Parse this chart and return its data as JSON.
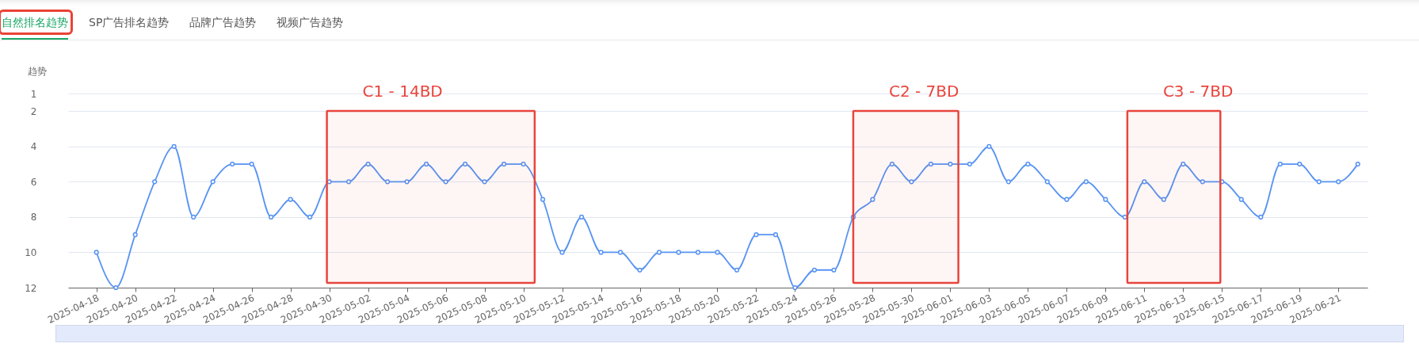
{
  "chart_data": {
    "type": "line",
    "title": "自然排名趋势",
    "annotations": [
      "SP广告排名趋势",
      "品牌广告趋势",
      "视频广告趋势"
    ],
    "ylabel": "趋势",
    "x": [
      "2025-04-18",
      "2025-04-19",
      "2025-04-20",
      "2025-04-21",
      "2025-04-22",
      "2025-04-23",
      "2025-04-24",
      "2025-04-25",
      "2025-04-26",
      "2025-04-27",
      "2025-04-28",
      "2025-04-29",
      "2025-04-30",
      "2025-05-01",
      "2025-05-02",
      "2025-05-03",
      "2025-05-04",
      "2025-05-05",
      "2025-05-06",
      "2025-05-07",
      "2025-05-08",
      "2025-05-09",
      "2025-05-10",
      "2025-05-11",
      "2025-05-12",
      "2025-05-13",
      "2025-05-14",
      "2025-05-15",
      "2025-05-16",
      "2025-05-17",
      "2025-05-18",
      "2025-05-19",
      "2025-05-20",
      "2025-05-21",
      "2025-05-22",
      "2025-05-23",
      "2025-05-24",
      "2025-05-25",
      "2025-05-26",
      "2025-05-27",
      "2025-05-28",
      "2025-05-29",
      "2025-05-30",
      "2025-05-31",
      "2025-06-01",
      "2025-06-02",
      "2025-06-03",
      "2025-06-04",
      "2025-06-05",
      "2025-06-06",
      "2025-06-07",
      "2025-06-08",
      "2025-06-09",
      "2025-06-10",
      "2025-06-11",
      "2025-06-12",
      "2025-06-13",
      "2025-06-14",
      "2025-06-15",
      "2025-06-16",
      "2025-06-17",
      "2025-06-18",
      "2025-06-19",
      "2025-06-20",
      "2025-06-21",
      "2025-06-22"
    ],
    "series": [
      {
        "color": "#5793f3",
        "values": [
          10,
          12,
          9,
          6,
          4,
          8,
          6,
          5,
          5,
          8,
          7,
          8,
          6,
          6,
          5,
          6,
          6,
          5,
          6,
          5,
          6,
          5,
          5,
          7,
          10,
          8,
          10,
          10,
          11,
          10,
          10,
          10,
          10,
          11,
          9,
          9,
          12,
          11,
          11,
          8,
          7,
          5,
          6,
          5,
          5,
          5,
          4,
          6,
          5,
          6,
          7,
          6,
          7,
          8,
          6,
          7,
          5,
          6,
          6,
          7,
          8,
          5,
          5,
          6,
          6,
          5
        ]
      }
    ],
    "xlim": [
      "2025-04-16T13:00",
      "2025-06-22T12:00"
    ],
    "xticks": [
      "2025-04-18",
      "2025-04-20",
      "2025-04-22",
      "2025-04-24",
      "2025-04-26",
      "2025-04-28",
      "2025-04-30",
      "2025-05-02",
      "2025-05-04",
      "2025-05-06",
      "2025-05-08",
      "2025-05-10",
      "2025-05-12",
      "2025-05-14",
      "2025-05-16",
      "2025-05-18",
      "2025-05-20",
      "2025-05-22",
      "2025-05-24",
      "2025-05-26",
      "2025-05-28",
      "2025-05-30",
      "2025-06-01",
      "2025-06-03",
      "2025-06-05",
      "2025-06-07",
      "2025-06-09",
      "2025-06-11",
      "2025-06-13",
      "2025-06-15",
      "2025-06-17",
      "2025-06-19",
      "2025-06-21"
    ],
    "ylim": [
      12,
      1
    ],
    "yticks": [
      1,
      2,
      4,
      6,
      8,
      10,
      12
    ],
    "bands": [
      {
        "axis": "x",
        "from": "2025-04-29T21:00",
        "to": "2025-05-10T14:00",
        "label": "C1 - 14BD",
        "color": "#e8453c"
      },
      {
        "axis": "x",
        "from": "2025-05-27T00:00",
        "to": "2025-06-01T10:00",
        "label": "C2 - 7BD",
        "color": "#e8453c"
      },
      {
        "axis": "x",
        "from": "2025-06-10T03:00",
        "to": "2025-06-14T22:00",
        "label": "C3 - 7BD",
        "color": "#e8453c"
      }
    ],
    "grid": "y",
    "marker": "circle",
    "line_style": "solid"
  }
}
